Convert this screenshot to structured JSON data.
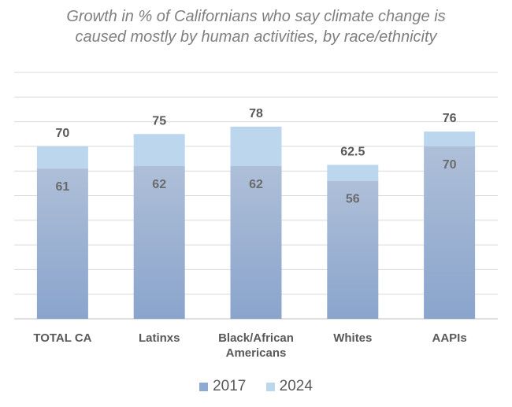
{
  "chart_data": {
    "type": "bar",
    "stacked_overlay": true,
    "title_lines": [
      "Growth in % of Californians who say climate change is",
      "caused mostly by human activities, by race/ethnicity"
    ],
    "categories": [
      "TOTAL CA",
      "Latinxs",
      "Black/African Americans",
      "Whites",
      "AAPIs"
    ],
    "series": [
      {
        "name": "2017",
        "values": [
          61,
          62,
          62,
          56,
          70
        ],
        "color": "#8eaad3"
      },
      {
        "name": "2024",
        "values": [
          70,
          75,
          78,
          62.5,
          76
        ],
        "color": "#bcd6ee"
      }
    ],
    "value_labels": {
      "2017": [
        "61",
        "62",
        "62",
        "56",
        "70"
      ],
      "2024": [
        "70",
        "75",
        "78",
        "62.5",
        "76"
      ]
    },
    "ylim": [
      0,
      100
    ],
    "grid": true,
    "legend": "bottom",
    "xlabel": "",
    "ylabel": ""
  }
}
